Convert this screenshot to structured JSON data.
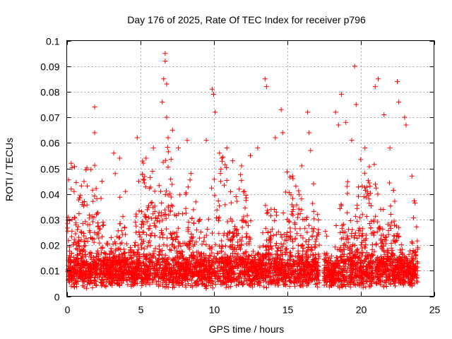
{
  "chart_data": {
    "type": "scatter",
    "title": "Day 176 of 2025, Rate Of TEC Index for receiver p796",
    "xlabel": "GPS time / hours",
    "ylabel": "ROTI / TECUs",
    "xlim": [
      0,
      25
    ],
    "ylim": [
      0,
      0.1
    ],
    "x_ticks": [
      0,
      5,
      10,
      15,
      20,
      25
    ],
    "y_ticks": [
      0,
      0.01,
      0.02,
      0.03,
      0.04,
      0.05,
      0.06,
      0.07,
      0.08,
      0.09,
      0.1
    ],
    "x_tick_labels": [
      "0",
      "5",
      "10",
      "15",
      "20",
      "25"
    ],
    "y_tick_labels": [
      "0",
      "0.01",
      "0.02",
      "0.03",
      "0.04",
      "0.05",
      "0.06",
      "0.07",
      "0.08",
      "0.09",
      "0.1"
    ],
    "grid": true,
    "marker": "+",
    "color": "#ff0000",
    "data_gap_hours": [
      17.2,
      17.5
    ],
    "series": [
      {
        "name": "ROTI",
        "x": [
          0.1,
          0.3,
          0.5,
          1.2,
          1.9,
          1.9,
          2.4,
          3.2,
          3.3,
          3.6,
          4.0,
          4.8,
          4.9,
          5.4,
          5.9,
          6.5,
          6.6,
          6.7,
          6.7,
          6.8,
          6.8,
          6.9,
          7.2,
          7.6,
          8.2,
          9.5,
          9.9,
          10.0,
          10.1,
          10.4,
          10.9,
          11.3,
          11.9,
          12.5,
          13.0,
          13.5,
          13.6,
          14.2,
          14.6,
          14.7,
          15.4,
          16.0,
          16.4,
          16.5,
          16.6,
          16.8,
          18.3,
          18.5,
          18.7,
          19.0,
          19.4,
          19.6,
          19.7,
          20.3,
          21.0,
          21.2,
          21.6,
          22.0,
          22.5,
          22.6,
          23.0,
          23.1,
          23.5
        ],
        "y": [
          0.012,
          0.052,
          0.041,
          0.037,
          0.074,
          0.064,
          0.045,
          0.056,
          0.048,
          0.054,
          0.041,
          0.062,
          0.045,
          0.054,
          0.058,
          0.076,
          0.085,
          0.095,
          0.092,
          0.083,
          0.07,
          0.062,
          0.065,
          0.058,
          0.061,
          0.061,
          0.081,
          0.079,
          0.072,
          0.056,
          0.058,
          0.053,
          0.051,
          0.055,
          0.058,
          0.085,
          0.082,
          0.062,
          0.073,
          0.064,
          0.046,
          0.051,
          0.072,
          0.064,
          0.057,
          0.044,
          0.072,
          0.067,
          0.079,
          0.068,
          0.061,
          0.09,
          0.075,
          0.058,
          0.082,
          0.085,
          0.071,
          0.058,
          0.084,
          0.076,
          0.07,
          0.067,
          0.047
        ]
      }
    ]
  }
}
